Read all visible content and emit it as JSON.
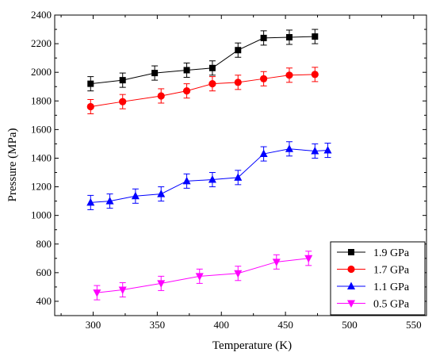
{
  "chart_data": {
    "type": "scatter",
    "title": "",
    "xlabel": "Temperature (K)",
    "ylabel": "Pressure (MPa)",
    "xlim": [
      270,
      560
    ],
    "ylim": [
      300,
      2400
    ],
    "xticks": [
      300,
      350,
      400,
      450,
      500,
      550
    ],
    "yticks": [
      400,
      600,
      800,
      1000,
      1200,
      1400,
      1600,
      1800,
      2000,
      2200,
      2400
    ],
    "grid": false,
    "legend_position": "bottom-right",
    "series": [
      {
        "name": "1.9 GPa",
        "color": "#000000",
        "marker": "square",
        "x": [
          298,
          323,
          348,
          373,
          393,
          413,
          433,
          453,
          473
        ],
        "y": [
          1920,
          1945,
          1995,
          2015,
          2030,
          2155,
          2240,
          2245,
          2250
        ],
        "error": [
          50,
          50,
          50,
          50,
          50,
          50,
          50,
          50,
          50
        ]
      },
      {
        "name": "1.7 GPa",
        "color": "#ff0000",
        "marker": "circle",
        "x": [
          298,
          323,
          353,
          373,
          393,
          413,
          433,
          453,
          473
        ],
        "y": [
          1760,
          1795,
          1835,
          1870,
          1920,
          1930,
          1955,
          1980,
          1985
        ],
        "error": [
          50,
          50,
          50,
          50,
          50,
          50,
          50,
          50,
          50
        ]
      },
      {
        "name": "1.1 GPa",
        "color": "#0000ff",
        "marker": "triangle-up",
        "x": [
          298,
          313,
          333,
          353,
          373,
          393,
          413,
          433,
          453,
          473,
          483
        ],
        "y": [
          1090,
          1100,
          1135,
          1150,
          1240,
          1250,
          1265,
          1430,
          1465,
          1450,
          1455
        ],
        "error": [
          50,
          50,
          50,
          50,
          50,
          50,
          50,
          50,
          50,
          50,
          50
        ]
      },
      {
        "name": "0.5 GPa",
        "color": "#ff00ff",
        "marker": "triangle-down",
        "x": [
          303,
          323,
          353,
          383,
          413,
          443,
          468
        ],
        "y": [
          460,
          480,
          525,
          575,
          595,
          675,
          700
        ],
        "error": [
          50,
          50,
          50,
          50,
          50,
          50,
          50
        ]
      }
    ]
  }
}
